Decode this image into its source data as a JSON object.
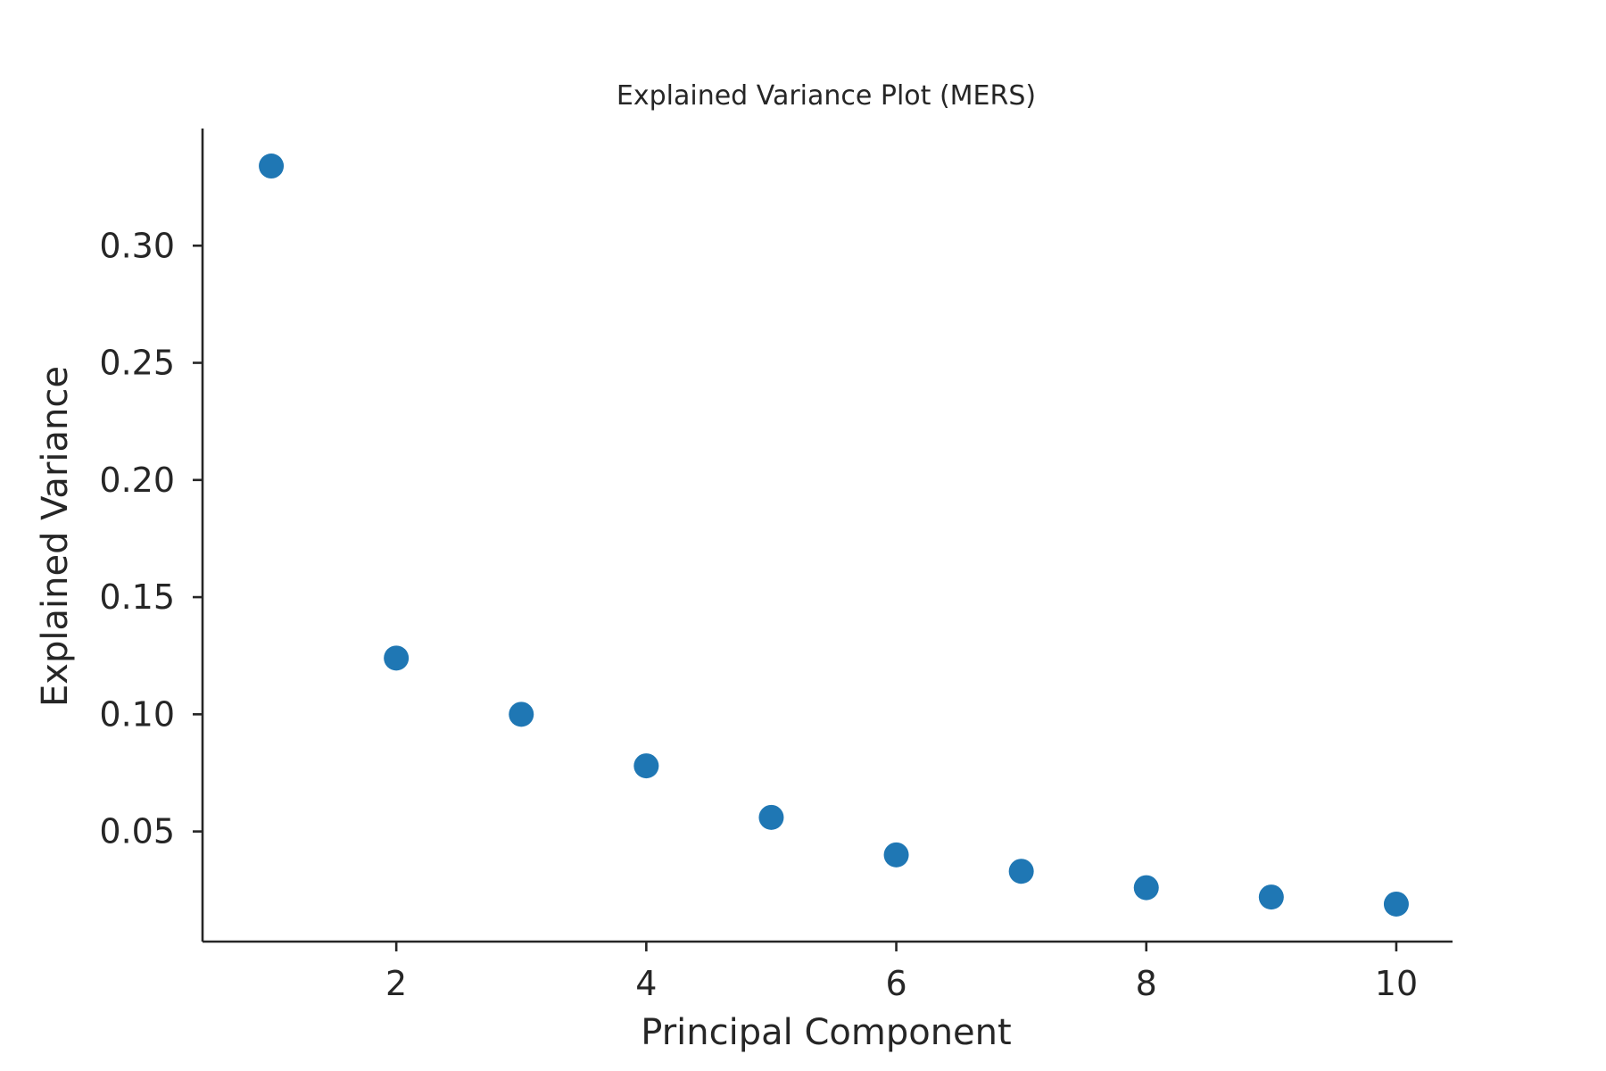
{
  "chart_data": {
    "type": "scatter",
    "title": "Explained Variance Plot (MERS)",
    "xlabel": "Principal Component",
    "ylabel": "Explained Variance",
    "x": [
      1,
      2,
      3,
      4,
      5,
      6,
      7,
      8,
      9,
      10
    ],
    "y": [
      0.334,
      0.124,
      0.1,
      0.078,
      0.056,
      0.04,
      0.033,
      0.026,
      0.022,
      0.019
    ],
    "xlim": [
      0.45,
      10.45
    ],
    "ylim": [
      0.003,
      0.35
    ],
    "xticks": [
      2,
      4,
      6,
      8,
      10
    ],
    "xtick_labels": [
      "2",
      "4",
      "6",
      "8",
      "10"
    ],
    "yticks": [
      0.05,
      0.1,
      0.15,
      0.2,
      0.25,
      0.3
    ],
    "ytick_labels": [
      "0.05",
      "0.10",
      "0.15",
      "0.20",
      "0.25",
      "0.30"
    ],
    "grid": false,
    "legend": "none",
    "marker_color": "#1f77b4"
  }
}
